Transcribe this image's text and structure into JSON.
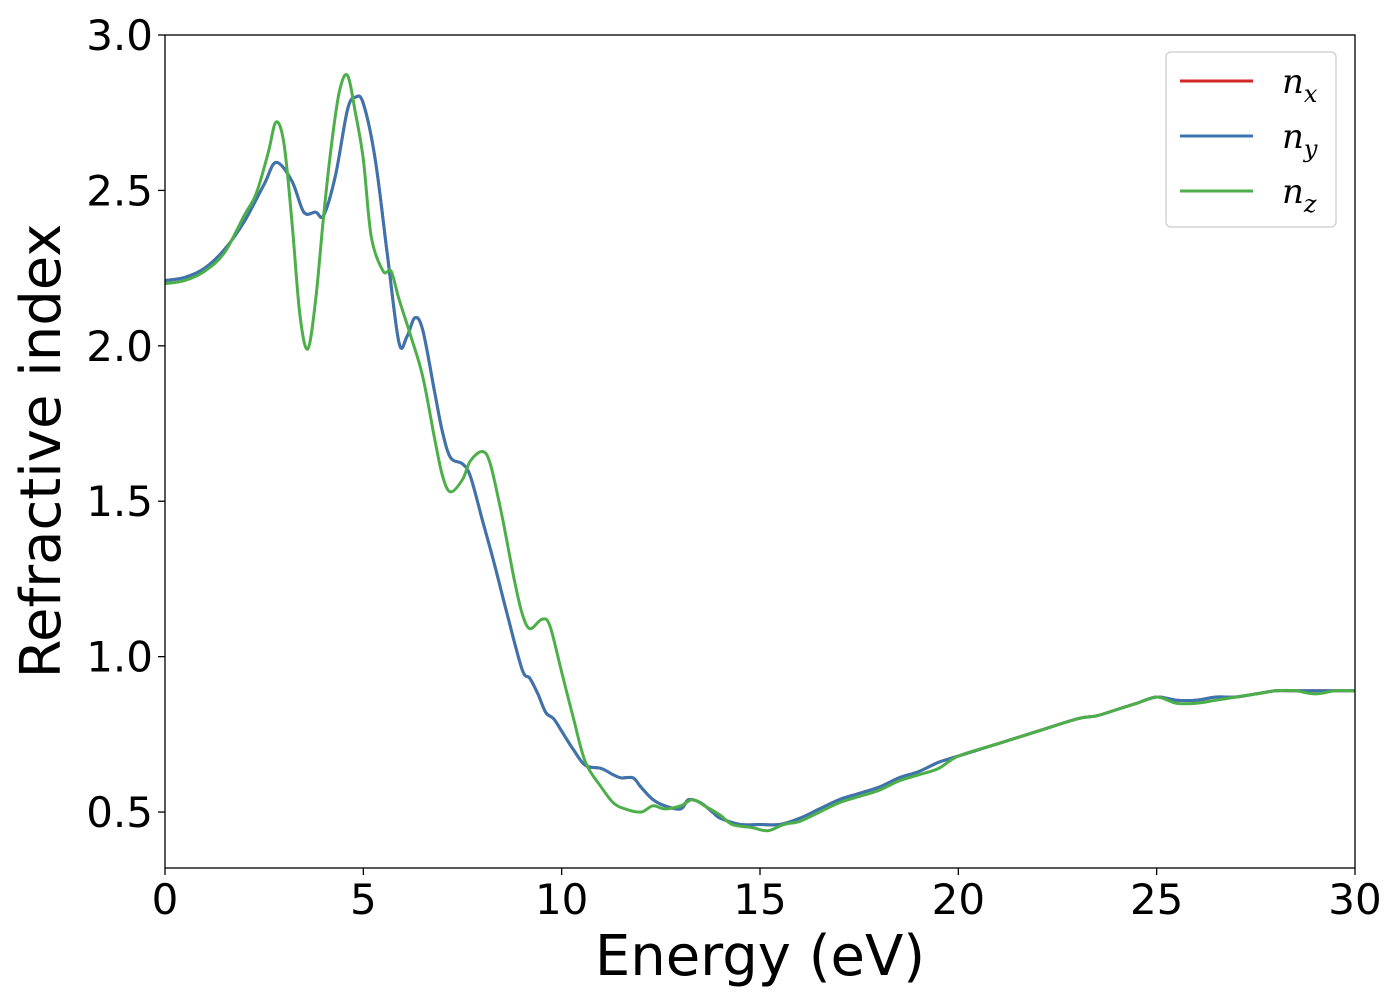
{
  "chart_data": {
    "type": "line",
    "xlabel": "Energy (eV)",
    "ylabel": "Refractive index",
    "xlim": [
      0,
      30
    ],
    "ylim": [
      0.32,
      3.0
    ],
    "xticks": [
      0,
      5,
      10,
      15,
      20,
      25,
      30
    ],
    "xtick_labels": [
      "0",
      "5",
      "10",
      "15",
      "20",
      "25",
      "30"
    ],
    "yticks": [
      0.5,
      1.0,
      1.5,
      2.0,
      2.5,
      3.0
    ],
    "ytick_labels": [
      "0.5",
      "1.0",
      "1.5",
      "2.0",
      "2.5",
      "3.0"
    ],
    "grid": false,
    "legend_position": "top-right",
    "series": [
      {
        "name": "n_x",
        "legend_base": "n",
        "legend_sub": "x",
        "color": "#d62728",
        "x": [
          0,
          0.5,
          1,
          1.5,
          2,
          2.5,
          2.8,
          3.2,
          3.5,
          3.8,
          4.0,
          4.3,
          4.6,
          4.8,
          5.0,
          5.3,
          5.6,
          5.9,
          6.1,
          6.3,
          6.5,
          6.8,
          7.0,
          7.2,
          7.5,
          7.7,
          8.0,
          8.3,
          8.6,
          9.0,
          9.2,
          9.4,
          9.6,
          9.8,
          10.0,
          10.3,
          10.6,
          11.0,
          11.3,
          11.5,
          11.8,
          12.0,
          12.3,
          12.6,
          13.0,
          13.2,
          13.5,
          13.8,
          14.0,
          14.5,
          15.0,
          15.5,
          16.0,
          16.5,
          17.0,
          17.5,
          18.0,
          18.5,
          19.0,
          19.5,
          20.0,
          21.0,
          22.0,
          23.0,
          23.5,
          24.0,
          24.5,
          25.0,
          25.5,
          26.0,
          26.5,
          27.0,
          27.5,
          28.0,
          28.5,
          29.0,
          29.5,
          30.0
        ],
        "y": [
          2.21,
          2.22,
          2.25,
          2.31,
          2.4,
          2.52,
          2.59,
          2.53,
          2.43,
          2.43,
          2.42,
          2.55,
          2.76,
          2.8,
          2.78,
          2.6,
          2.3,
          2.01,
          2.03,
          2.09,
          2.05,
          1.85,
          1.72,
          1.64,
          1.62,
          1.58,
          1.44,
          1.3,
          1.15,
          0.96,
          0.93,
          0.88,
          0.82,
          0.8,
          0.76,
          0.7,
          0.65,
          0.64,
          0.62,
          0.61,
          0.61,
          0.58,
          0.54,
          0.52,
          0.51,
          0.54,
          0.53,
          0.5,
          0.48,
          0.46,
          0.46,
          0.46,
          0.48,
          0.51,
          0.54,
          0.56,
          0.58,
          0.61,
          0.63,
          0.66,
          0.68,
          0.72,
          0.76,
          0.8,
          0.81,
          0.83,
          0.85,
          0.87,
          0.86,
          0.86,
          0.87,
          0.87,
          0.88,
          0.89,
          0.89,
          0.89,
          0.89,
          0.89
        ]
      },
      {
        "name": "n_y",
        "legend_base": "n",
        "legend_sub": "y",
        "color": "#3b75af",
        "x": [
          0,
          0.5,
          1,
          1.5,
          2,
          2.5,
          2.8,
          3.2,
          3.5,
          3.8,
          4.0,
          4.3,
          4.6,
          4.8,
          5.0,
          5.3,
          5.6,
          5.9,
          6.1,
          6.3,
          6.5,
          6.8,
          7.0,
          7.2,
          7.5,
          7.7,
          8.0,
          8.3,
          8.6,
          9.0,
          9.2,
          9.4,
          9.6,
          9.8,
          10.0,
          10.3,
          10.6,
          11.0,
          11.3,
          11.5,
          11.8,
          12.0,
          12.3,
          12.6,
          13.0,
          13.2,
          13.5,
          13.8,
          14.0,
          14.5,
          15.0,
          15.5,
          16.0,
          16.5,
          17.0,
          17.5,
          18.0,
          18.5,
          19.0,
          19.5,
          20.0,
          21.0,
          22.0,
          23.0,
          23.5,
          24.0,
          24.5,
          25.0,
          25.5,
          26.0,
          26.5,
          27.0,
          27.5,
          28.0,
          28.5,
          29.0,
          29.5,
          30.0
        ],
        "y": [
          2.21,
          2.22,
          2.25,
          2.31,
          2.4,
          2.52,
          2.59,
          2.53,
          2.43,
          2.43,
          2.42,
          2.55,
          2.76,
          2.8,
          2.78,
          2.6,
          2.3,
          2.01,
          2.03,
          2.09,
          2.05,
          1.85,
          1.72,
          1.64,
          1.62,
          1.58,
          1.44,
          1.3,
          1.15,
          0.96,
          0.93,
          0.88,
          0.82,
          0.8,
          0.76,
          0.7,
          0.65,
          0.64,
          0.62,
          0.61,
          0.61,
          0.58,
          0.54,
          0.52,
          0.51,
          0.54,
          0.53,
          0.5,
          0.48,
          0.46,
          0.46,
          0.46,
          0.48,
          0.51,
          0.54,
          0.56,
          0.58,
          0.61,
          0.63,
          0.66,
          0.68,
          0.72,
          0.76,
          0.8,
          0.81,
          0.83,
          0.85,
          0.87,
          0.86,
          0.86,
          0.87,
          0.87,
          0.88,
          0.89,
          0.89,
          0.89,
          0.89,
          0.89
        ]
      },
      {
        "name": "n_z",
        "legend_base": "n",
        "legend_sub": "z",
        "color": "#4daf4a",
        "x": [
          0,
          0.5,
          1,
          1.5,
          2,
          2.3,
          2.6,
          2.8,
          3.0,
          3.2,
          3.4,
          3.6,
          3.8,
          4.0,
          4.2,
          4.4,
          4.6,
          4.8,
          5.0,
          5.2,
          5.5,
          5.7,
          5.9,
          6.2,
          6.5,
          6.8,
          7.0,
          7.2,
          7.5,
          7.7,
          8.0,
          8.2,
          8.5,
          8.8,
          9.0,
          9.2,
          9.5,
          9.7,
          10.0,
          10.3,
          10.6,
          11.0,
          11.3,
          11.6,
          12.0,
          12.3,
          12.6,
          13.0,
          13.3,
          13.6,
          14.0,
          14.3,
          14.8,
          15.2,
          15.6,
          16.0,
          16.5,
          17.0,
          17.5,
          18.0,
          18.5,
          19.0,
          19.5,
          20.0,
          21.0,
          22.0,
          23.0,
          23.5,
          24.0,
          24.5,
          25.0,
          25.5,
          26.0,
          26.5,
          27.0,
          27.5,
          28.0,
          28.5,
          29.0,
          29.5,
          30.0
        ],
        "y": [
          2.2,
          2.21,
          2.24,
          2.3,
          2.42,
          2.49,
          2.62,
          2.72,
          2.65,
          2.4,
          2.1,
          1.99,
          2.15,
          2.42,
          2.65,
          2.82,
          2.87,
          2.75,
          2.6,
          2.35,
          2.24,
          2.24,
          2.15,
          2.03,
          1.9,
          1.7,
          1.58,
          1.53,
          1.57,
          1.63,
          1.66,
          1.62,
          1.45,
          1.25,
          1.14,
          1.09,
          1.12,
          1.1,
          0.95,
          0.8,
          0.66,
          0.58,
          0.53,
          0.51,
          0.5,
          0.52,
          0.51,
          0.52,
          0.54,
          0.52,
          0.49,
          0.46,
          0.45,
          0.44,
          0.46,
          0.47,
          0.5,
          0.53,
          0.55,
          0.57,
          0.6,
          0.62,
          0.64,
          0.68,
          0.72,
          0.76,
          0.8,
          0.81,
          0.83,
          0.85,
          0.87,
          0.85,
          0.85,
          0.86,
          0.87,
          0.88,
          0.89,
          0.89,
          0.88,
          0.89,
          0.89
        ]
      }
    ]
  }
}
